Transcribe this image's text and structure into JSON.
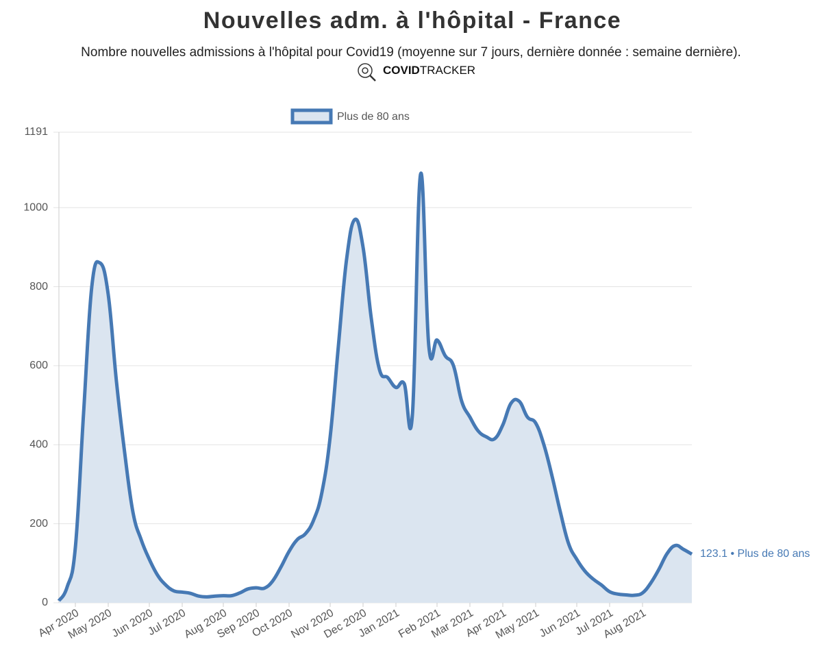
{
  "chart_data": {
    "type": "line",
    "title": "Nouvelles adm. à l'hôpital - France",
    "subtitle": "Nombre nouvelles admissions à l'hôpital pour Covid19 (moyenne sur 7 jours, dernière donnée : semaine dernière).",
    "logo_text": [
      "COVID",
      "TRACKER"
    ],
    "categories": [
      null,
      null,
      "Apr 2020",
      null,
      null,
      null,
      "May 2020",
      null,
      null,
      null,
      null,
      "Jun 2020",
      null,
      null,
      null,
      "Jul 2020",
      null,
      null,
      null,
      null,
      "Aug 2020",
      null,
      null,
      null,
      "Sep 2020",
      null,
      null,
      null,
      "Oct 2020",
      null,
      null,
      null,
      null,
      "Nov 2020",
      null,
      null,
      null,
      "Dec 2020",
      null,
      null,
      null,
      "Jan 2021",
      null,
      null,
      null,
      null,
      "Feb 2021",
      null,
      null,
      null,
      "Mar 2021",
      null,
      null,
      null,
      "Apr 2021",
      null,
      null,
      null,
      "May 2021",
      null,
      null,
      null,
      null,
      "Jun 2021",
      null,
      null,
      null,
      "Jul 2021",
      null,
      null,
      null,
      "Aug 2021",
      null,
      null,
      null,
      null,
      null,
      null
    ],
    "series": [
      {
        "name": "Plus de 80 ans",
        "color": "#4679b4",
        "fill": "#dbe5f0",
        "values": [
          5,
          40,
          140,
          480,
          800,
          860,
          780,
          560,
          380,
          230,
          160,
          110,
          70,
          45,
          30,
          27,
          24,
          17,
          15,
          17,
          18,
          18,
          25,
          35,
          38,
          37,
          55,
          90,
          130,
          160,
          175,
          210,
          280,
          420,
          650,
          870,
          970,
          900,
          720,
          590,
          570,
          545,
          555,
          475,
          1085,
          650,
          665,
          625,
          600,
          510,
          470,
          435,
          420,
          415,
          450,
          505,
          510,
          470,
          455,
          400,
          320,
          230,
          150,
          110,
          80,
          60,
          45,
          28,
          22,
          20,
          19,
          25,
          50,
          85,
          125,
          145,
          135,
          123.1
        ]
      }
    ],
    "end_label": "123.1 • Plus de 80 ans",
    "ylim": [
      0,
      1191
    ],
    "yticks": [
      0,
      200,
      400,
      600,
      800,
      1000,
      1191
    ],
    "grid": true,
    "legend": "top"
  }
}
